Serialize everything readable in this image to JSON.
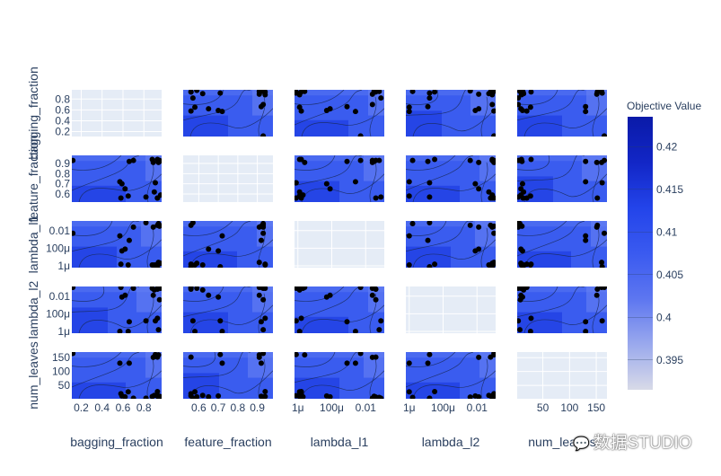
{
  "chart_data": {
    "type": "contour",
    "params": [
      "bagging_fraction",
      "feature_fraction",
      "lambda_l1",
      "lambda_l2",
      "num_leaves"
    ],
    "axes": {
      "bagging_fraction": {
        "scale": "linear",
        "range": [
          0.11,
          0.97
        ],
        "ticks": [
          0.2,
          0.4,
          0.6,
          0.8
        ],
        "tick_labels": [
          "0.2",
          "0.4",
          "0.6",
          "0.8"
        ]
      },
      "feature_fraction": {
        "scale": "linear",
        "range": [
          0.52,
          0.98
        ],
        "ticks": [
          0.6,
          0.7,
          0.8,
          0.9
        ],
        "tick_labels": [
          "0.6",
          "0.7",
          "0.8",
          "0.9"
        ]
      },
      "lambda_l1": {
        "scale": "log",
        "range": [
          -6.2,
          -0.9
        ],
        "ticks": [
          -6,
          -4,
          -2
        ],
        "tick_labels": [
          "1μ",
          "100μ",
          "0.01"
        ]
      },
      "lambda_l2": {
        "scale": "log",
        "range": [
          -6.2,
          -0.9
        ],
        "ticks": [
          -6,
          -4,
          -2
        ],
        "tick_labels": [
          "1μ",
          "100μ",
          "0.01"
        ]
      },
      "num_leaves": {
        "scale": "linear",
        "range": [
          2,
          170
        ],
        "ticks": [
          50,
          100,
          150
        ],
        "tick_labels": [
          "50",
          "100",
          "150"
        ]
      }
    },
    "trials": [
      [
        0.93,
        0.56,
        -6.1,
        -1.1,
        13
      ],
      [
        0.95,
        0.92,
        -1.5,
        -1.0,
        11
      ],
      [
        0.94,
        0.93,
        -1.2,
        -5.8,
        7
      ],
      [
        0.9,
        0.62,
        -5.9,
        -1.3,
        14
      ],
      [
        0.12,
        0.93,
        -2.3,
        -1.0,
        165
      ],
      [
        0.58,
        0.56,
        -5.8,
        -1.0,
        20
      ],
      [
        0.82,
        0.57,
        -1.1,
        -4.8,
        4
      ],
      [
        0.7,
        0.93,
        -1.6,
        -1.1,
        4
      ],
      [
        0.66,
        0.92,
        -3.1,
        -4.9,
        130
      ],
      [
        0.88,
        0.94,
        -5.9,
        -1.1,
        10
      ],
      [
        0.93,
        0.56,
        -1.4,
        -1.2,
        152
      ],
      [
        0.96,
        0.59,
        -5.7,
        -1.1,
        9
      ],
      [
        0.91,
        0.71,
        -6.1,
        -4.8,
        161
      ],
      [
        0.65,
        0.58,
        -5.9,
        -6.0,
        27
      ],
      [
        0.89,
        0.91,
        -1.6,
        -1.9,
        151
      ],
      [
        0.57,
        0.72,
        -2.6,
        -6.0,
        130
      ],
      [
        0.93,
        0.94,
        -5.8,
        -4.5,
        28
      ],
      [
        0.59,
        0.7,
        -4.3,
        -2.1,
        12
      ],
      [
        0.62,
        0.65,
        -4.1,
        -1.9,
        9
      ],
      [
        0.95,
        0.93,
        -1.4,
        -2.4,
        8
      ],
      [
        0.94,
        0.91,
        -5.6,
        -1.0,
        160
      ]
    ],
    "colorbar": {
      "title": "Objective Value",
      "min": 0.3915,
      "max": 0.4235,
      "ticks": [
        0.395,
        0.4,
        0.405,
        0.41,
        0.415,
        0.42
      ],
      "tick_labels": [
        "0.395",
        "0.4",
        "0.405",
        "0.41",
        "0.415",
        "0.42"
      ],
      "colors": [
        "#d8dae8",
        "#9aa9ed",
        "#5d76f0",
        "#3a5af0",
        "#2344ea",
        "#1226c6",
        "#0a1aa8"
      ]
    },
    "bottom_titles": [
      "bagging_fraction",
      "feature_fraction",
      "lambda_l1",
      "lambda_l2",
      "num_leaves"
    ],
    "left_titles": [
      "bagging_fraction",
      "feature_fraction",
      "lambda_l1",
      "lambda_l2",
      "num_leaves"
    ],
    "style": {
      "grid": true,
      "panel_bg": "#e5ecf6",
      "fill_base": "#3a5cef",
      "fill_dark": "#2140e3",
      "fill_light": "#6b85f3",
      "contour_line": "#1a2a5c",
      "point_color": "#000000"
    }
  },
  "watermark": {
    "text": "数据STUDIO",
    "icon": "wechat-icon"
  }
}
